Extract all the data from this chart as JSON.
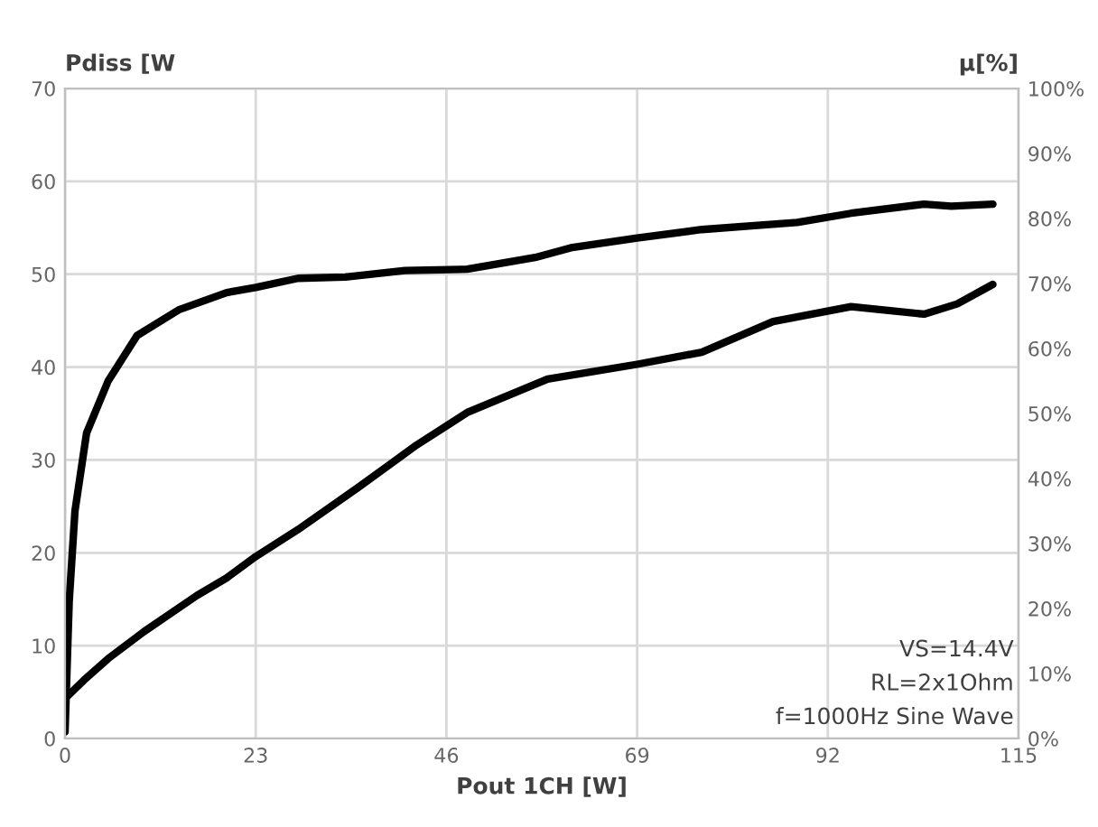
{
  "chart_data": {
    "type": "line",
    "xlabel": "Pout 1CH [W]",
    "ylabel": "Pdiss [W",
    "y2label": "μ[%]",
    "series": [
      {
        "color": "#000000",
        "axis": "y2",
        "x": [
          0,
          0.5,
          1.2,
          2.6,
          5.2,
          8.7,
          13.8,
          19.5,
          23,
          28.1,
          33.8,
          41,
          48.5,
          56.7,
          61,
          69,
          76.8,
          88.3,
          94.8,
          103.6,
          106.9,
          111.9
        ],
        "values": [
          1,
          21,
          35,
          47,
          55,
          62,
          66,
          68.6,
          69.4,
          70.8,
          71,
          72,
          72.2,
          74,
          75.5,
          77,
          78.3,
          79.4,
          80.8,
          82.2,
          81.9,
          82.2
        ]
      },
      {
        "color": "#000000",
        "x": [
          0,
          2.3,
          5.2,
          9.5,
          15.9,
          19.5,
          23,
          28.1,
          35.3,
          42.4,
          48.5,
          58.2,
          69,
          76.8,
          85.4,
          94.8,
          103.6,
          107.6,
          111.9
        ],
        "values": [
          4.3,
          6.3,
          8.6,
          11.5,
          15.4,
          17.3,
          19.6,
          22.5,
          27,
          31.6,
          35.1,
          38.7,
          40.3,
          41.6,
          44.9,
          46.5,
          45.7,
          46.8,
          48.9
        ]
      }
    ],
    "xlim": [
      0,
      115
    ],
    "xticks": [
      0,
      23,
      46,
      69,
      92,
      115
    ],
    "ylim": [
      0,
      70
    ],
    "yticks": [
      0,
      10,
      20,
      30,
      40,
      50,
      60,
      70
    ],
    "y2lim": [
      0,
      100
    ],
    "y2ticks": [
      {
        "value": 0,
        "label": "0%"
      },
      {
        "value": 10,
        "label": "10%"
      },
      {
        "value": 20,
        "label": "20%"
      },
      {
        "value": 30,
        "label": "30%"
      },
      {
        "value": 40,
        "label": "40%"
      },
      {
        "value": 50,
        "label": "50%"
      },
      {
        "value": 60,
        "label": "60%"
      },
      {
        "value": 70,
        "label": "70%"
      },
      {
        "value": 80,
        "label": "80%"
      },
      {
        "value": 90,
        "label": "90%"
      },
      {
        "value": 100,
        "label": "100%"
      }
    ],
    "grid": true,
    "line_style": "solid",
    "marker": "none",
    "annotations": [
      "VS=14.4V",
      "RL=2x1Ohm",
      "f=1000Hz Sine Wave"
    ]
  }
}
